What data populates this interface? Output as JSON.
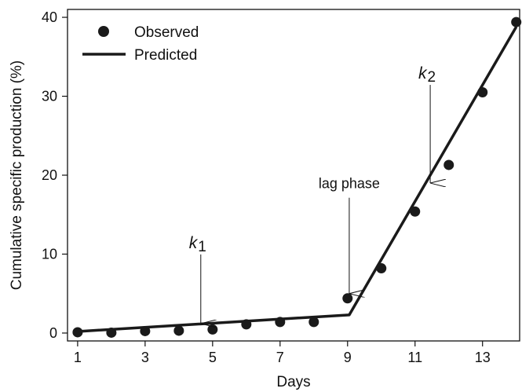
{
  "chart_data": {
    "type": "scatter",
    "xlabel": "Days",
    "ylabel": "Cumulative specific production (%)",
    "xlim": [
      0.7,
      14.1
    ],
    "ylim": [
      -1,
      41
    ],
    "xticks": [
      1,
      3,
      5,
      7,
      9,
      11,
      13
    ],
    "yticks": [
      0,
      10,
      20,
      30,
      40
    ],
    "legend_position": "top-left",
    "grid": false,
    "series": [
      {
        "name": "Observed",
        "style": "points",
        "x": [
          1,
          2,
          3,
          4,
          5,
          6,
          7,
          8,
          9,
          10,
          11,
          12,
          13,
          14
        ],
        "y": [
          0.1,
          0.05,
          0.25,
          0.3,
          0.45,
          1.1,
          1.4,
          1.4,
          4.4,
          8.2,
          15.4,
          21.3,
          30.5,
          39.4
        ]
      },
      {
        "name": "Predicted",
        "style": "line",
        "x": [
          1,
          9.05,
          14
        ],
        "y": [
          0.2,
          2.3,
          38.8
        ]
      }
    ],
    "annotations": [
      {
        "id": "k1",
        "text": "k",
        "sub": "1",
        "x": 4.65,
        "y": 1.2
      },
      {
        "id": "lag",
        "text": "lag phase",
        "x": 9.05,
        "y": 5.0
      },
      {
        "id": "k2",
        "text": "k",
        "sub": "2",
        "x": 11.45,
        "y": 19.0
      }
    ]
  }
}
